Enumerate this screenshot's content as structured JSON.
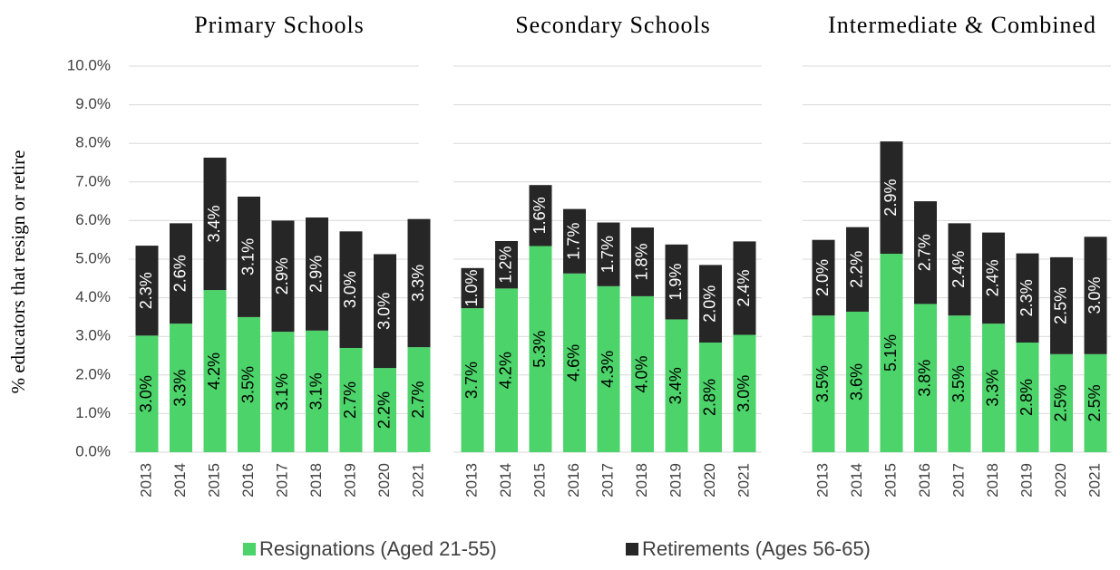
{
  "chart_data": [
    {
      "type": "bar",
      "title": "Primary Schools",
      "y_label": "% educators that resign or retire",
      "stacked": true,
      "grid": true,
      "categories": [
        "2013",
        "2014",
        "2015",
        "2016",
        "2017",
        "2018",
        "2019",
        "2020",
        "2021"
      ],
      "ylim": [
        0,
        10
      ],
      "yticks": [
        {
          "value": 0,
          "label": "0.0%"
        },
        {
          "value": 1,
          "label": "1.0%"
        },
        {
          "value": 2,
          "label": "2.0%"
        },
        {
          "value": 3,
          "label": "3.0%"
        },
        {
          "value": 4,
          "label": "4.0%"
        },
        {
          "value": 5,
          "label": "5.0%"
        },
        {
          "value": 6,
          "label": "6.0%"
        },
        {
          "value": 7,
          "label": "7.0%"
        },
        {
          "value": 8,
          "label": "8.0%"
        },
        {
          "value": 9,
          "label": "9.0%"
        },
        {
          "value": 10,
          "label": "10.0%"
        }
      ],
      "series": [
        {
          "name": "Resignations (Aged 21-55)",
          "color": "#4cd36a",
          "values": [
            3.02,
            3.33,
            4.2,
            3.5,
            3.12,
            3.15,
            2.7,
            2.18,
            2.72
          ],
          "value_labels": [
            "3.0%",
            "3.3%",
            "4.2%",
            "3.5%",
            "3.1%",
            "3.1%",
            "2.7%",
            "2.2%",
            "2.7%"
          ]
        },
        {
          "name": "Retirements (Ages 56-65)",
          "color": "#262626",
          "values": [
            2.33,
            2.6,
            3.43,
            3.12,
            2.88,
            2.93,
            3.02,
            2.95,
            3.32
          ],
          "value_labels": [
            "2.3%",
            "2.6%",
            "3.4%",
            "3.1%",
            "2.9%",
            "2.9%",
            "3.0%",
            "3.0%",
            "3.3%"
          ]
        }
      ]
    },
    {
      "type": "bar",
      "title": "Secondary Schools",
      "stacked": true,
      "grid": true,
      "categories": [
        "2013",
        "2014",
        "2015",
        "2016",
        "2017",
        "2018",
        "2019",
        "2020",
        "2021"
      ],
      "ylim": [
        0,
        10
      ],
      "yticks": [
        0,
        1,
        2,
        3,
        4,
        5,
        6,
        7,
        8,
        9,
        10
      ],
      "series": [
        {
          "color": "#4cd36a",
          "values": [
            3.73,
            4.24,
            5.34,
            4.63,
            4.3,
            4.04,
            3.44,
            2.84,
            3.04
          ],
          "value_labels": [
            "3.7%",
            "4.2%",
            "5.3%",
            "4.6%",
            "4.3%",
            "4.0%",
            "3.4%",
            "2.8%",
            "3.0%"
          ]
        },
        {
          "color": "#262626",
          "values": [
            1.04,
            1.23,
            1.58,
            1.67,
            1.65,
            1.78,
            1.94,
            2.01,
            2.42
          ],
          "value_labels": [
            "1.0%",
            "1.2%",
            "1.6%",
            "1.7%",
            "1.7%",
            "1.8%",
            "1.9%",
            "2.0%",
            "2.4%"
          ]
        }
      ]
    },
    {
      "type": "bar",
      "title": "Intermediate & Combined",
      "stacked": true,
      "grid": true,
      "categories": [
        "2013",
        "2014",
        "2015",
        "2016",
        "2017",
        "2018",
        "2019",
        "2020",
        "2021"
      ],
      "ylim": [
        0,
        10
      ],
      "yticks": [
        0,
        1,
        2,
        3,
        4,
        5,
        6,
        7,
        8,
        9,
        10
      ],
      "series": [
        {
          "color": "#4cd36a",
          "values": [
            3.54,
            3.64,
            5.14,
            3.84,
            3.54,
            3.33,
            2.84,
            2.54,
            2.54
          ],
          "value_labels": [
            "3.5%",
            "3.6%",
            "5.1%",
            "3.8%",
            "3.5%",
            "3.3%",
            "2.8%",
            "2.5%",
            "2.5%"
          ]
        },
        {
          "color": "#262626",
          "values": [
            1.96,
            2.19,
            2.91,
            2.66,
            2.39,
            2.36,
            2.31,
            2.51,
            3.04
          ],
          "value_labels": [
            "2.0%",
            "2.2%",
            "2.9%",
            "2.7%",
            "2.4%",
            "2.4%",
            "2.3%",
            "2.5%",
            "3.0%"
          ]
        }
      ]
    }
  ]
}
